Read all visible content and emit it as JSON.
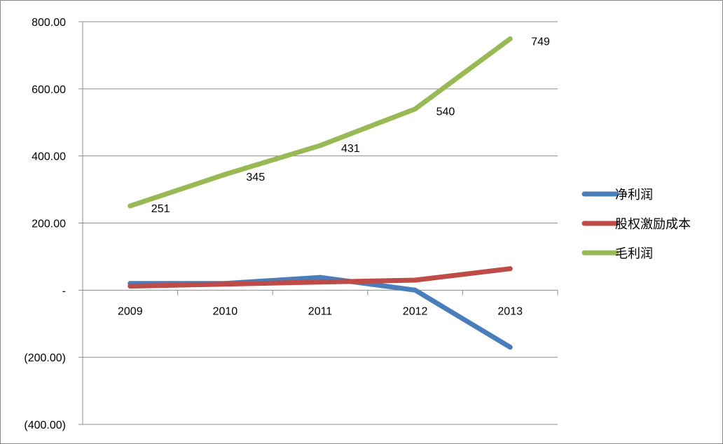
{
  "chart_data": {
    "type": "line",
    "categories": [
      "2009",
      "2010",
      "2011",
      "2012",
      "2013"
    ],
    "ylim": [
      -400,
      800
    ],
    "yticks": [
      {
        "value": 800,
        "label": "800.00"
      },
      {
        "value": 600,
        "label": "600.00"
      },
      {
        "value": 400,
        "label": "400.00"
      },
      {
        "value": 200,
        "label": "200.00"
      },
      {
        "value": 0,
        "label": "-"
      },
      {
        "value": -200,
        "label": "(200.00)"
      },
      {
        "value": -400,
        "label": "(400.00)"
      }
    ],
    "grid": true,
    "legend_position": "right",
    "series": [
      {
        "name": "净利润",
        "color": "#4a7ebb",
        "values": [
          20,
          20,
          38,
          0,
          -170
        ],
        "data_labels": null
      },
      {
        "name": "股权激励成本",
        "color": "#be4b48",
        "values": [
          12,
          18,
          24,
          30,
          64
        ],
        "data_labels": null
      },
      {
        "name": "毛利润",
        "color": "#98b954",
        "values": [
          251,
          345,
          431,
          540,
          749
        ],
        "data_labels": [
          "251",
          "345",
          "431",
          "540",
          "749"
        ]
      }
    ]
  }
}
